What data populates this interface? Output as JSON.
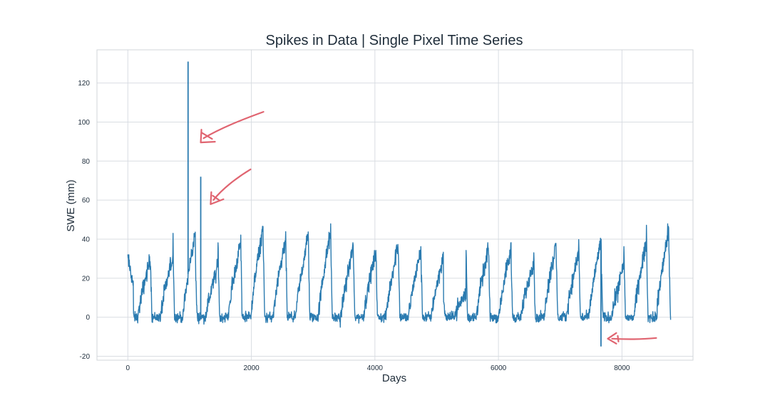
{
  "chart_data": {
    "type": "line",
    "title": "Spikes in Data | Single Pixel Time Series",
    "xlabel": "Days",
    "ylabel": "SWE (mm)",
    "xlim": [
      -500,
      9150
    ],
    "ylim": [
      -22,
      137
    ],
    "xticks": [
      0,
      2000,
      4000,
      6000,
      8000
    ],
    "yticks": [
      -20,
      0,
      20,
      40,
      60,
      80,
      100,
      120
    ],
    "grid": true,
    "colors": {
      "line": "#2b7bb0",
      "annotation": "#e06470",
      "grid": "#d9dde2",
      "spine": "#d0d4d8"
    },
    "seasonal_peaks": [
      {
        "x": 0,
        "y": 30
      },
      {
        "x": 365,
        "y": 31
      },
      {
        "x": 730,
        "y": 44
      },
      {
        "x": 1095,
        "y": 26
      },
      {
        "x": 1460,
        "y": 38
      },
      {
        "x": 1825,
        "y": 46
      },
      {
        "x": 2190,
        "y": 39
      },
      {
        "x": 2555,
        "y": 42
      },
      {
        "x": 2920,
        "y": 44
      },
      {
        "x": 3285,
        "y": 36
      },
      {
        "x": 3650,
        "y": 33
      },
      {
        "x": 4015,
        "y": 38
      },
      {
        "x": 4380,
        "y": 34
      },
      {
        "x": 4745,
        "y": 31
      },
      {
        "x": 5110,
        "y": 12
      },
      {
        "x": 5475,
        "y": 35
      },
      {
        "x": 5840,
        "y": 35
      },
      {
        "x": 6205,
        "y": 29
      },
      {
        "x": 6570,
        "y": 37
      },
      {
        "x": 6935,
        "y": 33
      },
      {
        "x": 7300,
        "y": 40
      },
      {
        "x": 7665,
        "y": 26
      },
      {
        "x": 8030,
        "y": 38
      },
      {
        "x": 8395,
        "y": 46
      },
      {
        "x": 8760,
        "y": 35
      }
    ],
    "spikes": [
      {
        "x": 975,
        "y": 131
      },
      {
        "x": 1180,
        "y": 72
      },
      {
        "x": 7660,
        "y": -15
      }
    ],
    "annotations": [
      {
        "type": "arrow",
        "target": {
          "x": 1180,
          "y": 91
        }
      },
      {
        "type": "arrow",
        "target": {
          "x": 1340,
          "y": 59
        }
      },
      {
        "type": "arrow",
        "target": {
          "x": 7770,
          "y": -11
        }
      }
    ]
  }
}
